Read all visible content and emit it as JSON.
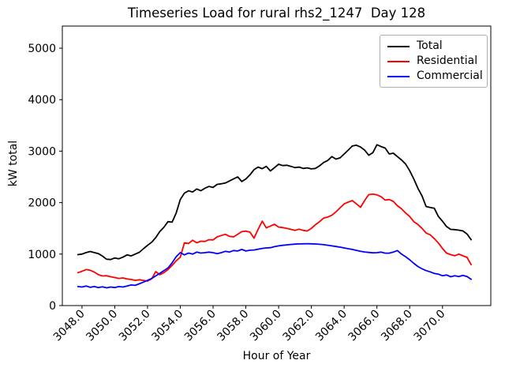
{
  "figure": {
    "background": "#ffffff",
    "axes_edge_color": "#000000"
  },
  "chart_data": {
    "type": "line",
    "title": "Timeseries Load for rural rhs2_1247  Day 128",
    "xlabel": "Hour of Year",
    "ylabel": "kW total",
    "xlim": [
      3046.8,
      3072.95
    ],
    "ylim": [
      0,
      5430
    ],
    "xticks": [
      3048,
      3050,
      3052,
      3054,
      3056,
      3058,
      3060,
      3062,
      3064,
      3066,
      3068,
      3070
    ],
    "xtick_labels": [
      "3048.0",
      "3050.0",
      "3052.0",
      "3054.0",
      "3056.0",
      "3058.0",
      "3060.0",
      "3062.0",
      "3064.0",
      "3066.0",
      "3068.0",
      "3070.0"
    ],
    "yticks": [
      0,
      1000,
      2000,
      3000,
      4000,
      5000
    ],
    "ytick_labels": [
      "0",
      "1000",
      "2000",
      "3000",
      "4000",
      "5000"
    ],
    "xtick_rotation_deg": 45,
    "grid": false,
    "legend_position": "upper right",
    "x_start": 3047.75,
    "x_step": 0.25,
    "series": [
      {
        "name": "Total",
        "color": "#000000",
        "values": [
          990,
          1000,
          1030,
          1050,
          1030,
          1010,
          960,
          900,
          895,
          925,
          910,
          940,
          985,
          965,
          1000,
          1035,
          1105,
          1170,
          1230,
          1320,
          1440,
          1520,
          1630,
          1620,
          1800,
          2060,
          2185,
          2230,
          2205,
          2265,
          2230,
          2280,
          2315,
          2295,
          2355,
          2365,
          2380,
          2420,
          2460,
          2500,
          2410,
          2460,
          2540,
          2640,
          2690,
          2660,
          2705,
          2615,
          2680,
          2745,
          2720,
          2725,
          2705,
          2680,
          2690,
          2665,
          2675,
          2655,
          2665,
          2715,
          2780,
          2820,
          2895,
          2845,
          2870,
          2945,
          3020,
          3100,
          3115,
          3080,
          3020,
          2920,
          2970,
          3125,
          3090,
          3060,
          2945,
          2960,
          2895,
          2830,
          2750,
          2620,
          2460,
          2280,
          2130,
          1925,
          1905,
          1890,
          1730,
          1640,
          1535,
          1480,
          1475,
          1465,
          1450,
          1390,
          1280
        ]
      },
      {
        "name": "Residential",
        "color": "#ff0000",
        "values": [
          640,
          665,
          700,
          685,
          650,
          600,
          575,
          580,
          560,
          545,
          527,
          537,
          517,
          507,
          490,
          502,
          490,
          476,
          520,
          660,
          598,
          640,
          700,
          780,
          870,
          940,
          1220,
          1205,
          1270,
          1220,
          1250,
          1245,
          1280,
          1275,
          1335,
          1360,
          1385,
          1345,
          1335,
          1385,
          1435,
          1447,
          1427,
          1310,
          1480,
          1640,
          1510,
          1545,
          1580,
          1525,
          1515,
          1500,
          1480,
          1460,
          1485,
          1460,
          1450,
          1500,
          1570,
          1630,
          1700,
          1720,
          1755,
          1820,
          1900,
          1975,
          2010,
          2040,
          1975,
          1910,
          2040,
          2155,
          2165,
          2150,
          2115,
          2050,
          2060,
          2025,
          1940,
          1880,
          1800,
          1730,
          1630,
          1575,
          1500,
          1410,
          1375,
          1300,
          1215,
          1110,
          1020,
          990,
          968,
          1000,
          966,
          935,
          795
        ]
      },
      {
        "name": "Commercial",
        "color": "#0000ff",
        "values": [
          370,
          360,
          380,
          355,
          370,
          350,
          365,
          345,
          360,
          350,
          370,
          360,
          380,
          400,
          392,
          424,
          455,
          490,
          526,
          577,
          628,
          680,
          730,
          830,
          950,
          1030,
          985,
          1020,
          1000,
          1038,
          1020,
          1028,
          1038,
          1028,
          1010,
          1028,
          1054,
          1040,
          1069,
          1060,
          1090,
          1060,
          1075,
          1080,
          1095,
          1110,
          1120,
          1125,
          1145,
          1160,
          1170,
          1180,
          1188,
          1193,
          1198,
          1200,
          1202,
          1200,
          1196,
          1190,
          1183,
          1172,
          1160,
          1148,
          1135,
          1120,
          1105,
          1090,
          1072,
          1055,
          1042,
          1032,
          1025,
          1028,
          1038,
          1018,
          1018,
          1038,
          1069,
          1000,
          950,
          890,
          820,
          760,
          715,
          680,
          655,
          625,
          610,
          580,
          595,
          560,
          578,
          565,
          588,
          565,
          510
        ]
      }
    ]
  }
}
